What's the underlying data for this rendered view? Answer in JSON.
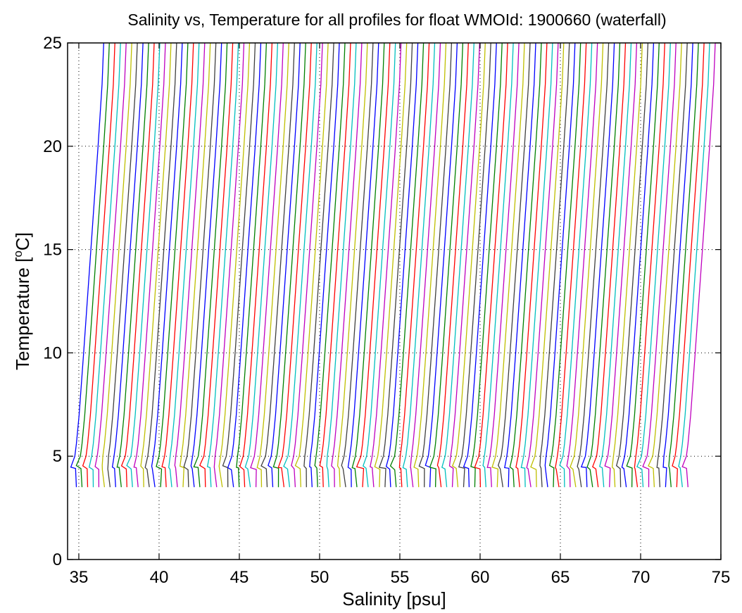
{
  "chart_data": {
    "type": "line",
    "title": "Salinity vs, Temperature for all profiles for float WMOId: 1900660 (waterfall)",
    "xlabel": "Salinity [psu]",
    "ylabel": "Temperature [",
    "ylabel_sup": "o",
    "ylabel_tail": "C]",
    "xlim": [
      34.3,
      75
    ],
    "ylim": [
      0,
      25
    ],
    "xticks": [
      "35",
      "40",
      "45",
      "50",
      "55",
      "60",
      "65",
      "70",
      "75"
    ],
    "yticks": [
      "0",
      "5",
      "10",
      "15",
      "20",
      "25"
    ],
    "grid": true,
    "series_colors": [
      "#0000ff",
      "#008000",
      "#ff0000",
      "#00bfbf",
      "#bf00bf",
      "#bfbf00",
      "#404040"
    ],
    "series_count": 110,
    "first_base_salinity": 34.8,
    "last_base_salinity": 72.9,
    "profile_points": [
      {
        "t": 3.5,
        "ds": 0.05
      },
      {
        "t": 4.4,
        "ds": 0.0
      },
      {
        "t": 4.5,
        "ds": -0.2
      },
      {
        "t": 5.0,
        "ds": -0.05
      },
      {
        "t": 5.6,
        "ds": 0.05
      },
      {
        "t": 7.0,
        "ds": 0.22
      },
      {
        "t": 10.0,
        "ds": 0.5
      },
      {
        "t": 15.0,
        "ds": 0.95
      },
      {
        "t": 20.0,
        "ds": 1.4
      },
      {
        "t": 23.0,
        "ds": 1.65
      },
      {
        "t": 25.0,
        "ds": 1.75
      }
    ]
  }
}
